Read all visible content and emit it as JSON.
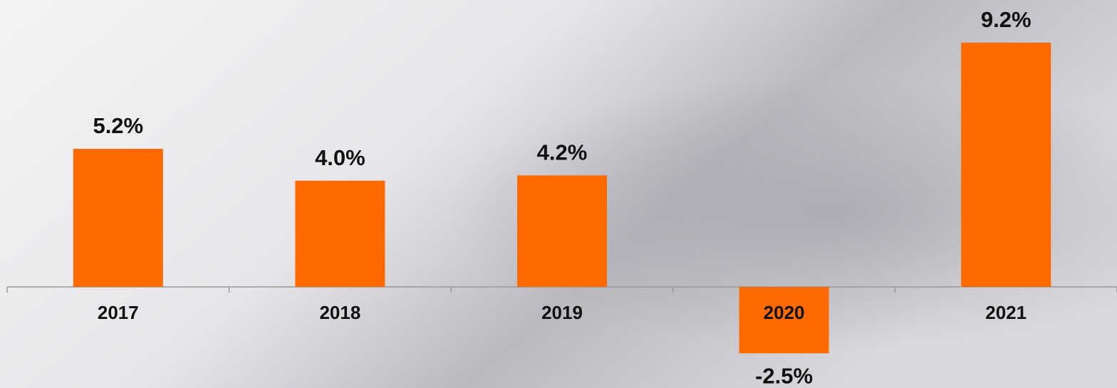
{
  "chart_data": {
    "type": "bar",
    "categories": [
      "2017",
      "2018",
      "2019",
      "2020",
      "2021"
    ],
    "values": [
      5.2,
      4.0,
      4.2,
      -2.5,
      9.2
    ],
    "value_labels": [
      "5.2%",
      "4.0%",
      "4.2%",
      "-2.5%",
      "9.2%"
    ],
    "color": "#ff6a00"
  }
}
